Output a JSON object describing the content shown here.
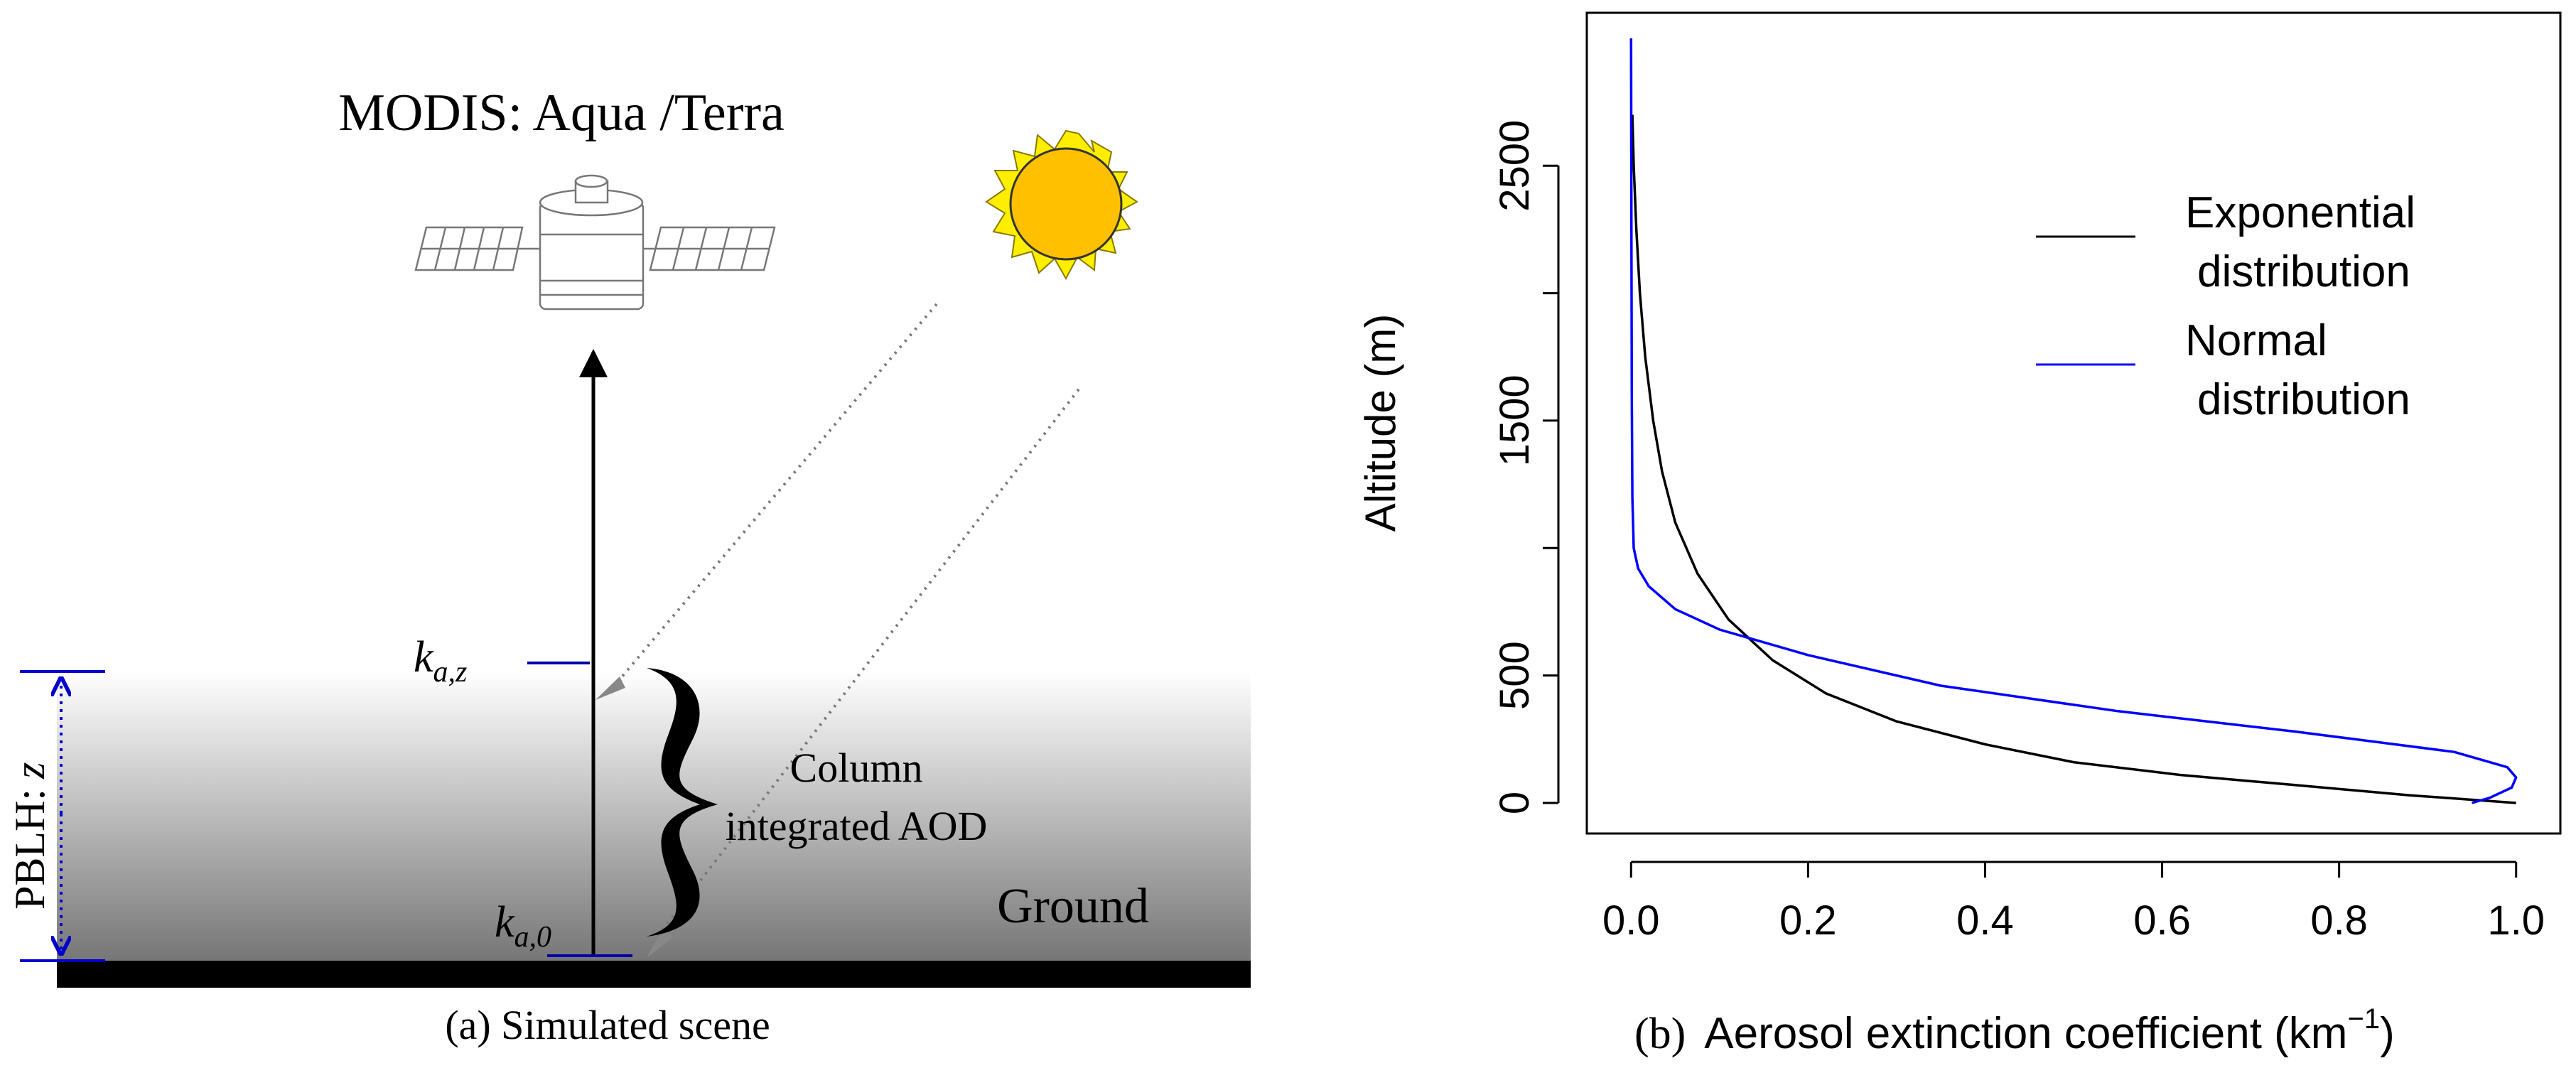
{
  "left_panel": {
    "satellite_title": "MODIS: Aqua /Terra",
    "label_k_z": "k",
    "label_k_z_sub": "a,z",
    "label_k_0": "k",
    "label_k_0_sub": "a,0",
    "column_line1": "Column",
    "column_line2": "integrated AOD",
    "ground_label": "Ground",
    "pblh_label": "PBLH:",
    "pblh_var": "z",
    "caption": "(a) Simulated scene",
    "colors": {
      "arrow": "#000000",
      "sun_rays": "#ffee00",
      "sun_core": "#ffc000",
      "pblh_marker": "#0000cc"
    }
  },
  "right_panel": {
    "caption_prefix": "(b)",
    "chart_data": {
      "type": "line",
      "title": "",
      "xlabel": "Aerosol extinction coefficient (km",
      "xlabel_sup": "−1",
      "xlabel_close": ")",
      "ylabel": "Altitude (m)",
      "xlim": [
        -0.05,
        1.05
      ],
      "ylim": [
        -120,
        3100
      ],
      "xticks": [
        0.0,
        0.2,
        0.4,
        0.6,
        0.8,
        1.0
      ],
      "xtick_labels": [
        "0.0",
        "0.2",
        "0.4",
        "0.6",
        "0.8",
        "1.0"
      ],
      "yticks": [
        0,
        500,
        1000,
        1500,
        2000,
        2500
      ],
      "ytick_labels": [
        "0",
        "500",
        "",
        "1500",
        "",
        "2500"
      ],
      "legend": {
        "placement": "top-right",
        "entries": [
          {
            "line1": "Exponential",
            "line2": "distribution",
            "color": "#000000"
          },
          {
            "line1": "Normal",
            "line2": "distribution",
            "color": "#0000ff"
          }
        ]
      },
      "series": [
        {
          "name": "Exponential distribution",
          "color": "#000000",
          "points": [
            [
              1.0,
              0
            ],
            [
              0.88,
              30
            ],
            [
              0.75,
              70
            ],
            [
              0.62,
              110
            ],
            [
              0.5,
              160
            ],
            [
              0.4,
              230
            ],
            [
              0.3,
              320
            ],
            [
              0.22,
              430
            ],
            [
              0.16,
              560
            ],
            [
              0.11,
              720
            ],
            [
              0.075,
              900
            ],
            [
              0.05,
              1100
            ],
            [
              0.035,
              1300
            ],
            [
              0.025,
              1500
            ],
            [
              0.016,
              1750
            ],
            [
              0.01,
              2000
            ],
            [
              0.006,
              2250
            ],
            [
              0.003,
              2500
            ],
            [
              0.0015,
              2700
            ]
          ]
        },
        {
          "name": "Normal distribution",
          "color": "#0000ff",
          "points": [
            [
              0.95,
              0
            ],
            [
              0.97,
              20
            ],
            [
              0.995,
              60
            ],
            [
              1.0,
              100
            ],
            [
              0.99,
              140
            ],
            [
              0.93,
              200
            ],
            [
              0.75,
              280
            ],
            [
              0.55,
              360
            ],
            [
              0.35,
              460
            ],
            [
              0.2,
              580
            ],
            [
              0.1,
              680
            ],
            [
              0.05,
              760
            ],
            [
              0.02,
              850
            ],
            [
              0.008,
              920
            ],
            [
              0.003,
              1000
            ],
            [
              0.0015,
              1200
            ],
            [
              0.0008,
              1600
            ],
            [
              0.0004,
              2200
            ],
            [
              0.0,
              3000
            ]
          ]
        }
      ]
    }
  }
}
